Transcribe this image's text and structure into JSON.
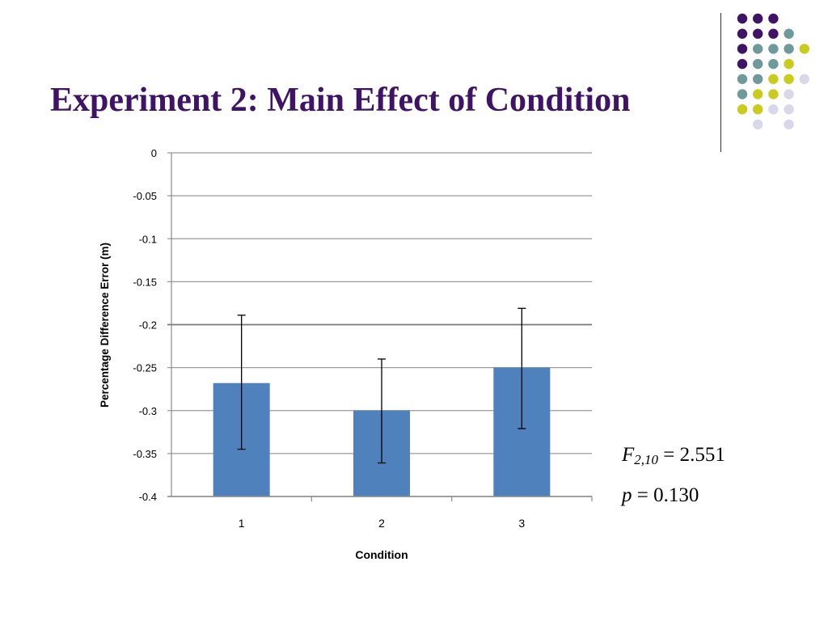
{
  "slide": {
    "title": "Experiment 2: Main Effect of Condition"
  },
  "decoration": {
    "dot_colors": [
      "#3f1466",
      "#6f9a9b",
      "#c9cc1c",
      "#d8d8ea"
    ]
  },
  "stats": {
    "f_symbol": "F",
    "f_subscript": "2,10",
    "f_value": "= 2.551",
    "p_symbol": "p",
    "p_value": "= 0.130"
  },
  "chart_data": {
    "type": "bar",
    "categories": [
      "1",
      "2",
      "3"
    ],
    "values": [
      -0.268,
      -0.3,
      -0.25
    ],
    "error_bars": [
      {
        "low": -0.345,
        "high": -0.189
      },
      {
        "low": -0.361,
        "high": -0.24
      },
      {
        "low": -0.321,
        "high": -0.181
      }
    ],
    "xlabel": "Condition",
    "ylabel": "Percentage Difference Error (m)",
    "ylim": [
      -0.4,
      0
    ],
    "yticks": [
      0,
      -0.05,
      -0.1,
      -0.15,
      -0.2,
      -0.25,
      -0.3,
      -0.35,
      -0.4
    ],
    "ytick_labels": [
      "0",
      "-0.05",
      "-0.1",
      "-0.15",
      "-0.2",
      "-0.25",
      "-0.3",
      "-0.35",
      "-0.4"
    ],
    "bar_color": "#4f81bd",
    "grid": true,
    "legend": false
  }
}
